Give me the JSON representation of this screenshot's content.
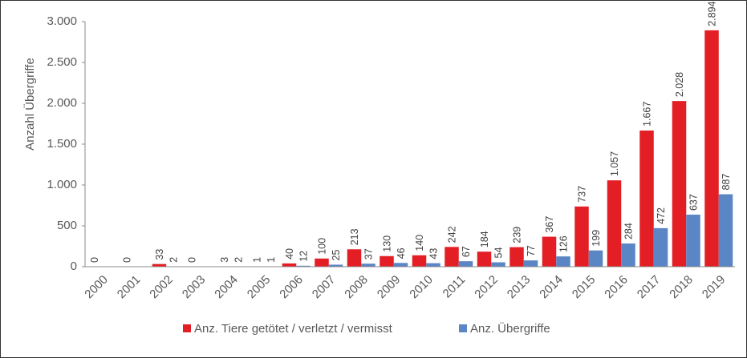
{
  "chart_data": {
    "type": "bar",
    "y_axis_label": "Anzahl Übergriffe",
    "categories": [
      "2000",
      "2001",
      "2002",
      "2003",
      "2004",
      "2005",
      "2006",
      "2007",
      "2008",
      "2009",
      "2010",
      "2011",
      "2012",
      "2013",
      "2014",
      "2015",
      "2016",
      "2017",
      "2018",
      "2019"
    ],
    "series": [
      {
        "name": "Anz. Tiere getötet / verletzt / vermisst",
        "color": "#e31e24",
        "values": [
          0,
          0,
          33,
          0,
          3,
          1,
          40,
          100,
          213,
          130,
          140,
          242,
          184,
          239,
          367,
          737,
          1057,
          1667,
          2028,
          2894
        ],
        "value_labels": [
          "0",
          "0",
          "33",
          "0",
          "3",
          "1",
          "40",
          "100",
          "213",
          "130",
          "140",
          "242",
          "184",
          "239",
          "367",
          "737",
          "1.057",
          "1.667",
          "2.028",
          "2.894"
        ]
      },
      {
        "name": "Anz. Übergriffe",
        "color": "#5b86c5",
        "values": [
          null,
          null,
          2,
          null,
          2,
          1,
          12,
          25,
          37,
          46,
          43,
          67,
          54,
          77,
          126,
          199,
          284,
          472,
          637,
          887
        ]
      }
    ],
    "ylim": [
      0,
      3000
    ],
    "yticks": [
      0,
      500,
      {
        "value": 1000,
        "label": "1.000"
      },
      {
        "value": 1500,
        "label": "1.500"
      },
      {
        "value": 2000,
        "label": "2.000"
      },
      {
        "value": 2500,
        "label": "2.500"
      },
      {
        "value": 3000,
        "label": "3.000"
      }
    ],
    "legend": "bottom"
  }
}
